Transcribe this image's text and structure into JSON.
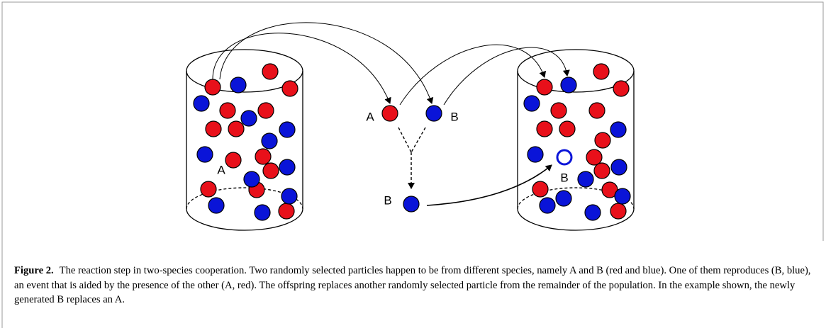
{
  "figure": {
    "labels": {
      "left_a": "A",
      "mid_a": "A",
      "mid_b": "B",
      "offspring_b": "B",
      "right_b": "B"
    },
    "caption": {
      "label": "Figure 2.",
      "text": "The reaction step in two-species cooperation. Two randomly selected particles happen to be from different species, namely A and B (red and blue). One of them reproduces (B, blue), an event that is aided by the presence of the other (A, red). The offspring replaces another randomly selected particle from the remainder of the population. In the example shown, the newly generated B replaces an A."
    }
  }
}
